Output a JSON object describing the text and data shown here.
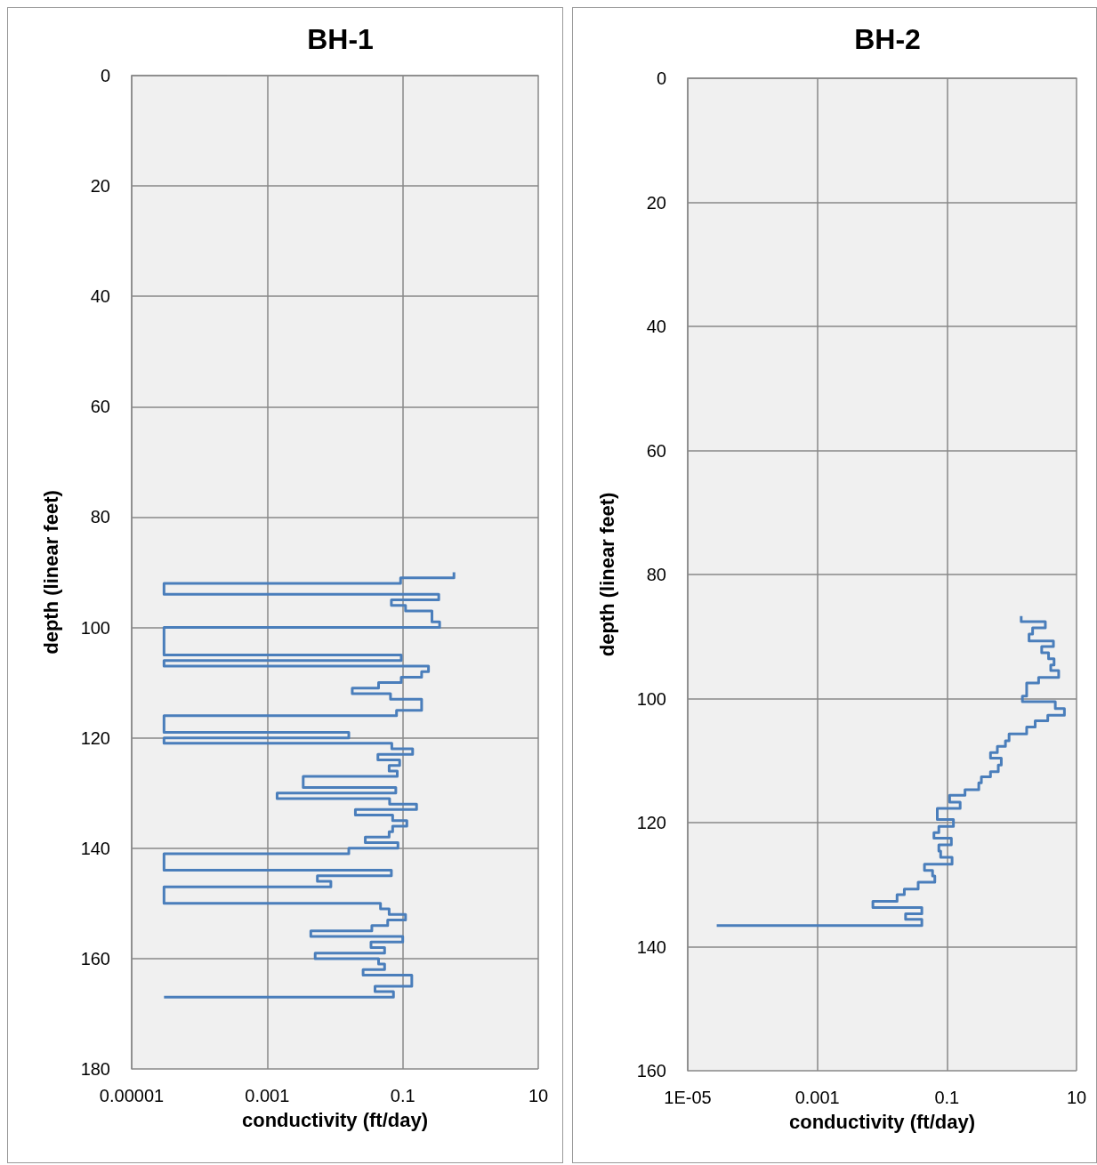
{
  "chart_data": [
    {
      "type": "line",
      "title": "BH-1",
      "xlabel": "conductivity (ft/day)",
      "ylabel": "depth (linear feet)",
      "log": "x",
      "xlim": [
        1e-05,
        10
      ],
      "xticks": [
        {
          "value": 1e-05,
          "label": "0.00001"
        },
        {
          "value": 0.001,
          "label": "0.001"
        },
        {
          "value": 0.1,
          "label": "0.1"
        },
        {
          "value": 10,
          "label": "10"
        }
      ],
      "ylim": [
        180,
        0
      ],
      "yticks": [
        0,
        20,
        40,
        60,
        80,
        100,
        120,
        140,
        160,
        180
      ],
      "grid": true,
      "marker": "none",
      "series": [
        {
          "color": "#4a7ebb",
          "x": [
            0.57,
            0.57,
            0.093,
            0.093,
            3e-05,
            3e-05,
            0.34,
            0.34,
            0.068,
            0.068,
            0.11,
            0.11,
            0.27,
            0.27,
            0.35,
            0.35,
            3e-05,
            3e-05,
            0.095,
            0.095,
            3e-05,
            3e-05,
            0.24,
            0.24,
            0.19,
            0.19,
            0.095,
            0.095,
            0.044,
            0.044,
            0.018,
            0.018,
            0.066,
            0.066,
            0.19,
            0.19,
            0.081,
            0.081,
            3e-05,
            3e-05,
            0.016,
            0.016,
            3e-05,
            3e-05,
            0.069,
            0.069,
            0.14,
            0.14,
            0.043,
            0.043,
            0.09,
            0.09,
            0.063,
            0.063,
            0.083,
            0.083,
            0.0034,
            0.0034,
            0.079,
            0.079,
            0.0014,
            0.0014,
            0.064,
            0.064,
            0.16,
            0.16,
            0.02,
            0.02,
            0.071,
            0.071,
            0.115,
            0.115,
            0.071,
            0.071,
            0.063,
            0.063,
            0.028,
            0.028,
            0.085,
            0.085,
            0.016,
            0.016,
            3e-05,
            3e-05,
            0.068,
            0.068,
            0.0055,
            0.0055,
            0.0087,
            0.0087,
            3e-05,
            3e-05,
            0.047,
            0.047,
            0.063,
            0.063,
            0.11,
            0.11,
            0.06,
            0.06,
            0.035,
            0.035,
            0.0044,
            0.0044,
            0.1,
            0.1,
            0.034,
            0.034,
            0.054,
            0.054,
            0.0051,
            0.0051,
            0.044,
            0.044,
            0.054,
            0.054,
            0.026,
            0.026,
            0.136,
            0.136,
            0.039,
            0.039,
            0.073,
            0.073,
            3e-05
          ],
          "values": [
            90,
            91,
            91,
            92,
            92,
            94,
            94,
            95,
            95,
            96,
            96,
            97,
            97,
            99,
            99,
            100,
            100,
            105,
            105,
            106,
            106,
            107,
            107,
            108,
            108,
            109,
            109,
            110,
            110,
            111,
            111,
            112,
            112,
            113,
            113,
            115,
            115,
            116,
            116,
            119,
            119,
            120,
            120,
            121,
            121,
            122,
            122,
            123,
            123,
            124,
            124,
            125,
            125,
            126,
            126,
            127,
            127,
            129,
            129,
            130,
            130,
            131,
            131,
            132,
            132,
            133,
            133,
            134,
            134,
            135,
            135,
            136,
            136,
            137,
            137,
            138,
            138,
            139,
            139,
            140,
            140,
            141,
            141,
            144,
            144,
            145,
            145,
            146,
            146,
            147,
            147,
            150,
            150,
            151,
            151,
            152,
            152,
            153,
            153,
            154,
            154,
            155,
            155,
            156,
            156,
            157,
            157,
            158,
            158,
            159,
            159,
            160,
            160,
            161,
            161,
            162,
            162,
            163,
            163,
            165,
            165,
            166,
            166,
            167,
            167
          ]
        }
      ]
    },
    {
      "type": "line",
      "title": "BH-2",
      "xlabel": "conductivity (ft/day)",
      "ylabel": "depth (linear feet)",
      "log": "x",
      "xlim": [
        1e-05,
        10
      ],
      "xticks": [
        {
          "value": 1e-05,
          "label": "1E-05"
        },
        {
          "value": 0.001,
          "label": "0.001"
        },
        {
          "value": 0.1,
          "label": "0.1"
        },
        {
          "value": 10,
          "label": "10"
        }
      ],
      "ylim": [
        160,
        0
      ],
      "yticks": [
        0,
        20,
        40,
        60,
        80,
        100,
        120,
        140,
        160
      ],
      "grid": true,
      "marker": "none",
      "series": [
        {
          "color": "#4a7ebb",
          "x": [
            1.4,
            1.4,
            3.3,
            3.3,
            2.1,
            2.1,
            1.85,
            1.85,
            4.4,
            4.4,
            2.9,
            2.9,
            3.7,
            3.7,
            4.5,
            4.5,
            4.0,
            4.0,
            5.3,
            5.3,
            2.6,
            2.6,
            1.7,
            1.7,
            1.46,
            1.46,
            4.7,
            4.7,
            6.5,
            6.5,
            3.6,
            3.6,
            2.3,
            2.3,
            1.7,
            1.7,
            0.91,
            0.91,
            0.8,
            0.8,
            0.6,
            0.6,
            0.47,
            0.47,
            0.69,
            0.69,
            0.62,
            0.62,
            0.47,
            0.47,
            0.34,
            0.34,
            0.31,
            0.31,
            0.19,
            0.19,
            0.11,
            0.11,
            0.16,
            0.16,
            0.071,
            0.071,
            0.126,
            0.126,
            0.075,
            0.075,
            0.063,
            0.063,
            0.117,
            0.117,
            0.075,
            0.075,
            0.08,
            0.08,
            0.12,
            0.12,
            0.045,
            0.045,
            0.06,
            0.06,
            0.065,
            0.065,
            0.036,
            0.036,
            0.022,
            0.022,
            0.017,
            0.017,
            0.0072,
            0.0072,
            0.041,
            0.041,
            0.023,
            0.023,
            0.041,
            0.041,
            2.8e-05
          ],
          "values": [
            86.7,
            87.6,
            87.6,
            88.6,
            88.6,
            89.6,
            89.6,
            90.7,
            90.7,
            91.6,
            91.6,
            92.6,
            92.6,
            93.6,
            93.6,
            94.6,
            94.6,
            95.5,
            95.5,
            96.6,
            96.6,
            97.5,
            97.5,
            99.6,
            99.6,
            100.5,
            100.5,
            101.6,
            101.6,
            102.7,
            102.7,
            103.6,
            103.6,
            104.6,
            104.6,
            105.7,
            105.7,
            106.8,
            106.8,
            107.7,
            107.7,
            108.7,
            108.7,
            109.6,
            109.6,
            110.7,
            110.7,
            111.8,
            111.8,
            112.6,
            112.6,
            113.6,
            113.6,
            114.7,
            114.7,
            115.6,
            115.6,
            116.7,
            116.7,
            117.7,
            117.7,
            119.5,
            119.5,
            120.6,
            120.6,
            121.6,
            121.6,
            122.5,
            122.5,
            123.6,
            123.6,
            124.6,
            124.6,
            125.6,
            125.6,
            126.7,
            126.7,
            127.7,
            127.7,
            128.6,
            128.6,
            129.6,
            129.6,
            130.7,
            130.7,
            131.6,
            131.6,
            132.7,
            132.7,
            133.7,
            133.7,
            134.7,
            134.7,
            135.6,
            135.6,
            136.6,
            136.6
          ]
        }
      ]
    }
  ]
}
